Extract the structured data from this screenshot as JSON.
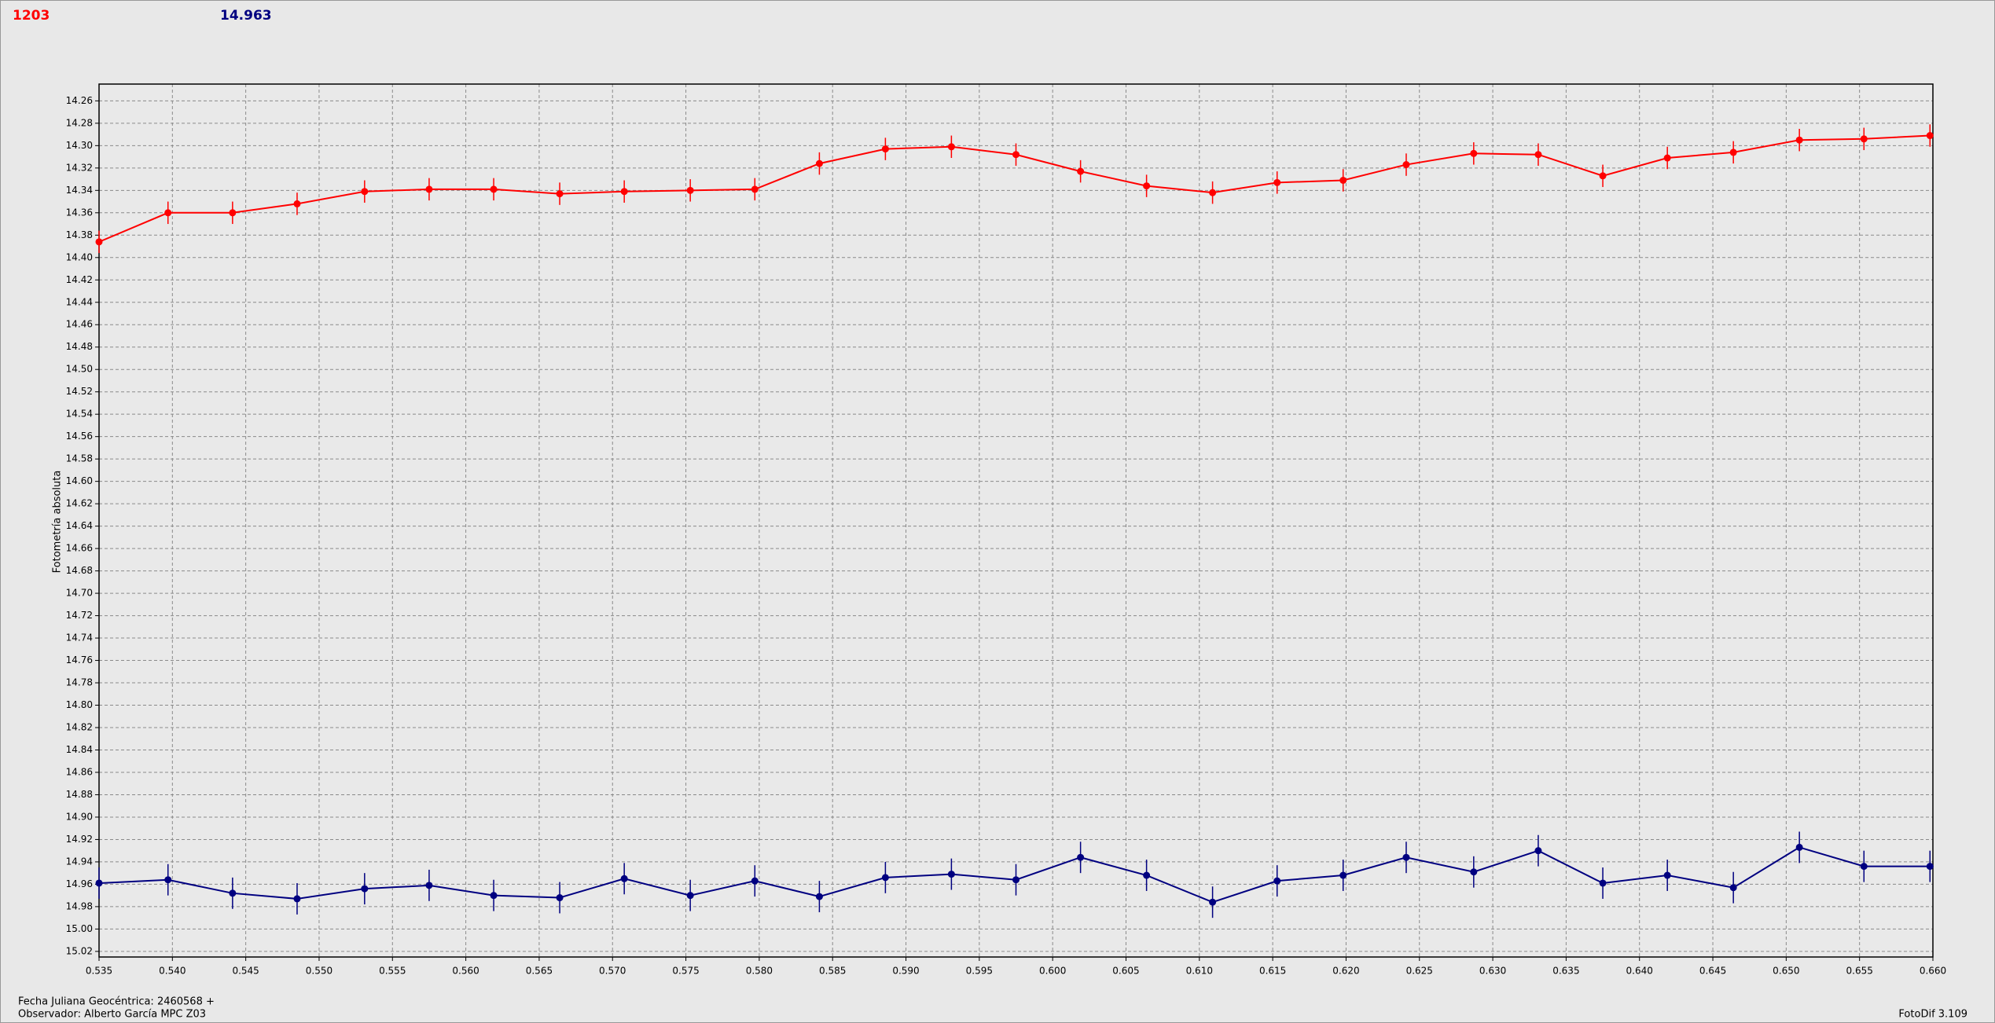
{
  "chart_data": {
    "type": "line",
    "y_label": "Fotometría absoluta",
    "footer_left": [
      "Fecha Juliana Geocéntrica: 2460568 +",
      "Observador: Alberto García MPC Z03"
    ],
    "footer_right": "FotoDif 3.109",
    "x": [
      0.535,
      0.5397,
      0.5441,
      0.5485,
      0.5531,
      0.5575,
      0.5619,
      0.5664,
      0.5708,
      0.5753,
      0.5797,
      0.5841,
      0.5886,
      0.5931,
      0.5975,
      0.6019,
      0.6064,
      0.6109,
      0.6153,
      0.6198,
      0.6241,
      0.6287,
      0.6331,
      0.6375,
      0.6419,
      0.6464,
      0.6509,
      0.6553,
      0.6598
    ],
    "series": [
      {
        "name": "1203",
        "color": "#ff0000",
        "error": 0.01,
        "values": [
          14.386,
          14.36,
          14.36,
          14.352,
          14.341,
          14.339,
          14.339,
          14.343,
          14.341,
          14.34,
          14.339,
          14.316,
          14.303,
          14.301,
          14.308,
          14.323,
          14.336,
          14.342,
          14.333,
          14.331,
          14.317,
          14.307,
          14.308,
          14.327,
          14.311,
          14.306,
          14.295,
          14.294,
          14.291
        ]
      },
      {
        "name": "14.963",
        "color": "#000080",
        "error": 0.014,
        "values": [
          14.959,
          14.956,
          14.968,
          14.973,
          14.964,
          14.961,
          14.97,
          14.972,
          14.955,
          14.97,
          14.957,
          14.971,
          14.954,
          14.951,
          14.956,
          14.936,
          14.952,
          14.976,
          14.957,
          14.952,
          14.936,
          14.949,
          14.93,
          14.959,
          14.952,
          14.963,
          14.927,
          14.944,
          14.944
        ]
      }
    ],
    "xlim": [
      0.535,
      0.66
    ],
    "xticks": [
      0.535,
      {
        "value": 0.54,
        "label": "0.540"
      },
      0.545,
      {
        "value": 0.55,
        "label": "0.550"
      },
      0.555,
      {
        "value": 0.56,
        "label": "0.560"
      },
      0.565,
      {
        "value": 0.57,
        "label": "0.570"
      },
      0.575,
      {
        "value": 0.58,
        "label": "0.580"
      },
      0.585,
      {
        "value": 0.59,
        "label": "0.590"
      },
      0.595,
      {
        "value": 0.6,
        "label": "0.600"
      },
      0.605,
      {
        "value": 0.61,
        "label": "0.610"
      },
      0.615,
      {
        "value": 0.62,
        "label": "0.620"
      },
      0.625,
      {
        "value": 0.63,
        "label": "0.630"
      },
      0.635,
      {
        "value": 0.64,
        "label": "0.640"
      },
      0.645,
      {
        "value": 0.65,
        "label": "0.650"
      },
      0.655,
      {
        "value": 0.66,
        "label": "0.660"
      }
    ],
    "ylim": [
      14.245,
      15.025
    ],
    "y_inverted": true,
    "yticks": [
      14.26,
      14.28,
      {
        "value": 14.3,
        "label": "14.30"
      },
      14.32,
      14.34,
      14.36,
      14.38,
      {
        "value": 14.4,
        "label": "14.40"
      },
      14.42,
      14.44,
      14.46,
      14.48,
      {
        "value": 14.5,
        "label": "14.50"
      },
      14.52,
      14.54,
      14.56,
      14.58,
      {
        "value": 14.6,
        "label": "14.60"
      },
      14.62,
      14.64,
      14.66,
      14.68,
      {
        "value": 14.7,
        "label": "14.70"
      },
      14.72,
      14.74,
      14.76,
      14.78,
      {
        "value": 14.8,
        "label": "14.80"
      },
      14.82,
      14.84,
      14.86,
      14.88,
      {
        "value": 14.9,
        "label": "14.90"
      },
      14.92,
      14.94,
      14.96,
      14.98,
      {
        "value": 15.0,
        "label": "15.00"
      },
      15.02
    ],
    "grid": true
  }
}
